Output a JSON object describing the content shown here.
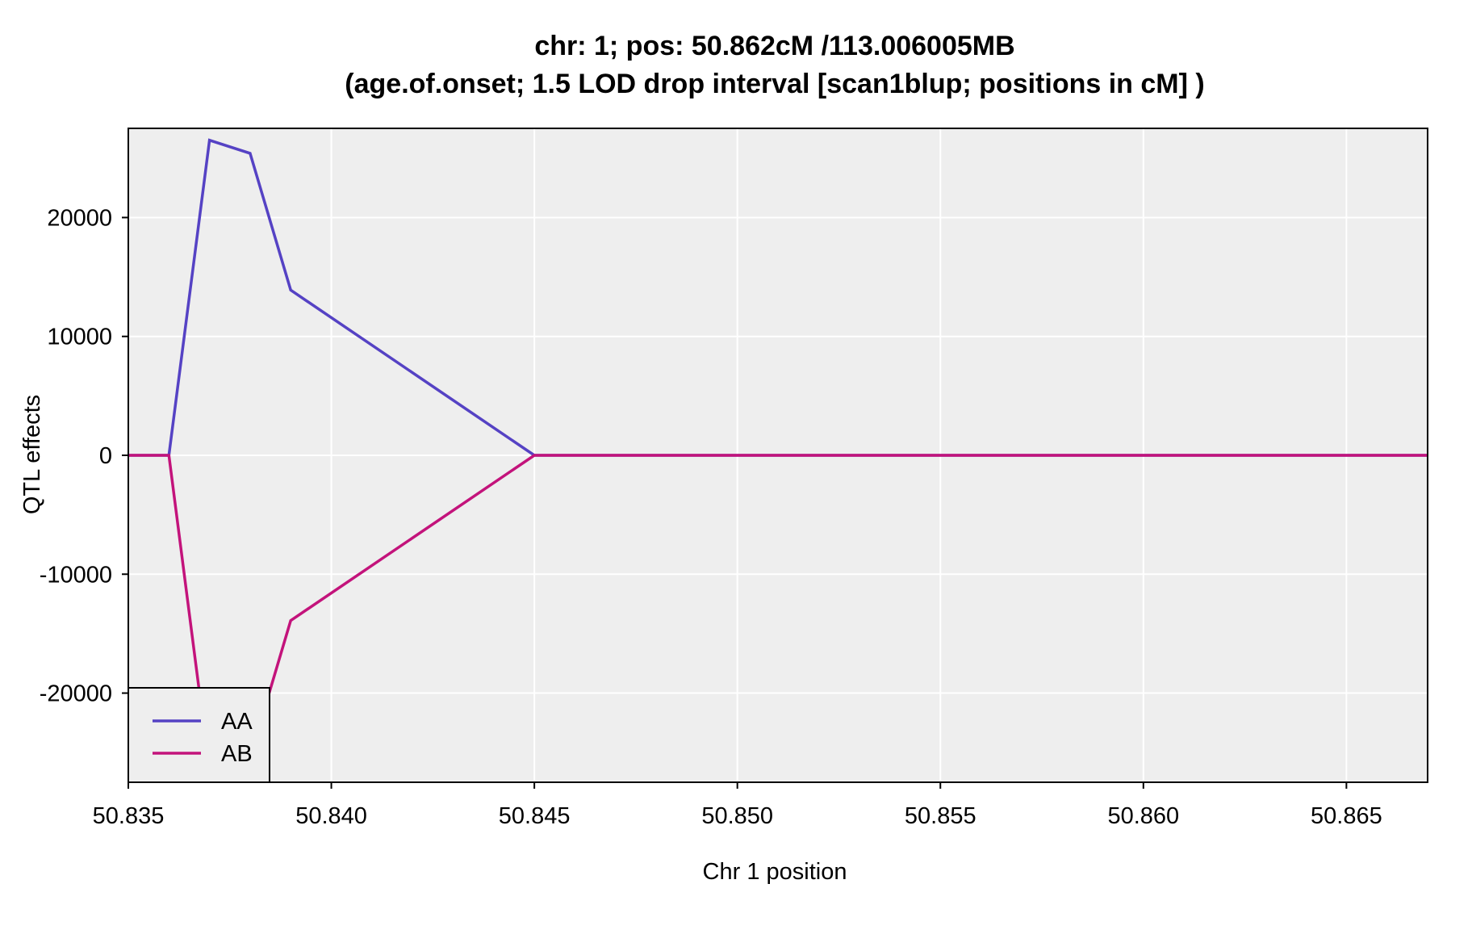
{
  "chart_data": {
    "type": "line",
    "title": "chr: 1; pos: 50.862cM /113.006005MB",
    "subtitle": "(age.of.onset; 1.5 LOD drop interval [scan1blup; positions in cM] )",
    "xlabel": "Chr 1 position",
    "ylabel": "QTL effects",
    "xlim": [
      50.835,
      50.867
    ],
    "ylim": [
      -27500,
      27500
    ],
    "x_ticks": [
      50.835,
      50.84,
      50.845,
      50.85,
      50.855,
      50.86,
      50.865
    ],
    "x_tick_labels": [
      "50.835",
      "50.840",
      "50.845",
      "50.850",
      "50.855",
      "50.860",
      "50.865"
    ],
    "y_ticks": [
      20000,
      10000,
      0,
      -10000,
      -20000
    ],
    "y_tick_labels": [
      "20000",
      "10000",
      "0",
      "-10000",
      "-20000"
    ],
    "grid": true,
    "legend_position": "bottom-left",
    "background_color": "#eeeeee",
    "grid_color": "#ffffff",
    "series": [
      {
        "name": "AA",
        "color": "#5542c4",
        "x": [
          50.835,
          50.836,
          50.837,
          50.838,
          50.839,
          50.845,
          50.867
        ],
        "y": [
          0,
          0,
          26500,
          25400,
          13900,
          0,
          0
        ]
      },
      {
        "name": "AB",
        "color": "#c3137b",
        "x": [
          50.835,
          50.836,
          50.837,
          50.838,
          50.839,
          50.845,
          50.867
        ],
        "y": [
          0,
          0,
          -26500,
          -25400,
          -13900,
          0,
          0
        ]
      }
    ]
  }
}
